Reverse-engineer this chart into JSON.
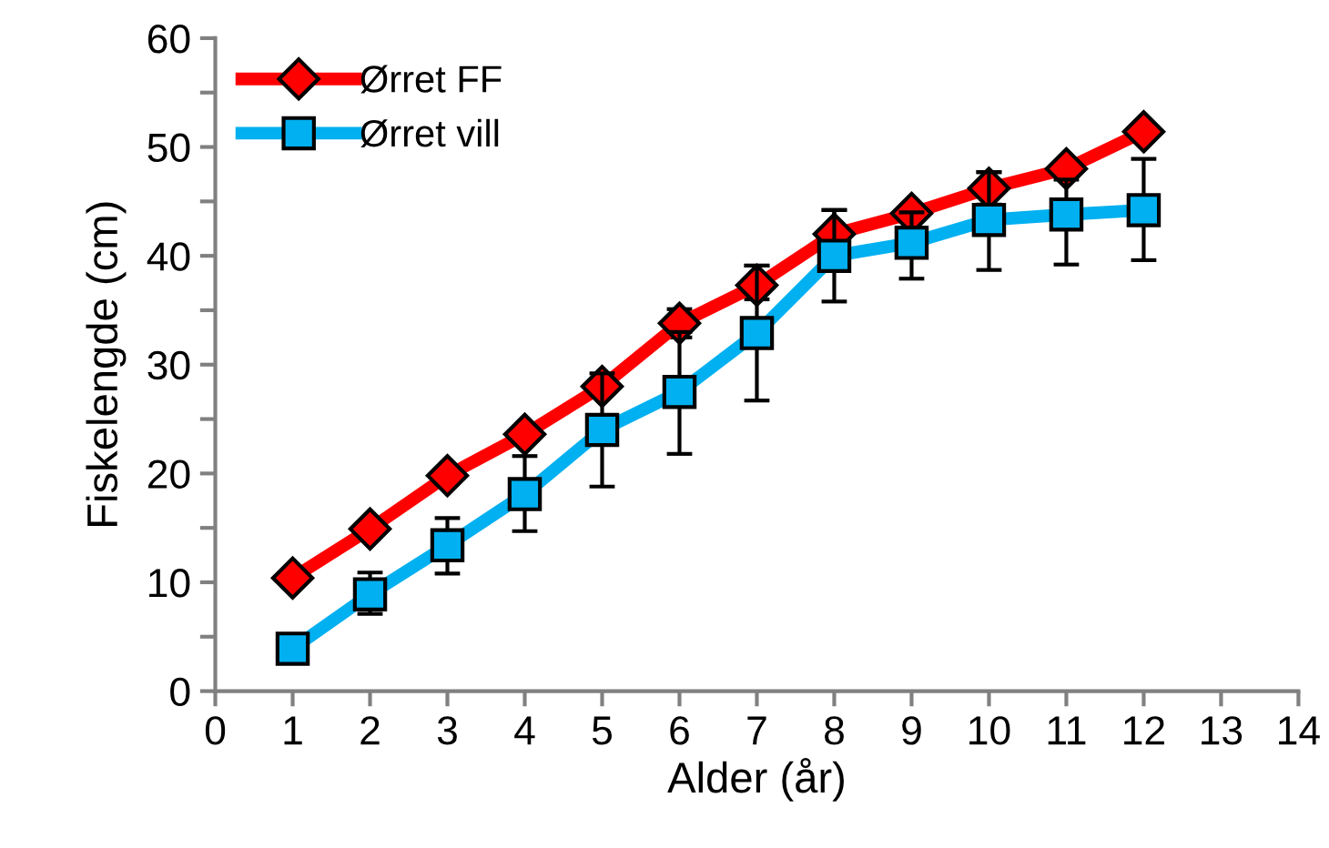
{
  "chart_data": {
    "type": "line",
    "xlabel": "Alder (år)",
    "ylabel": "Fiskelengde (cm)",
    "x": [
      1,
      2,
      3,
      4,
      5,
      6,
      7,
      8,
      9,
      10,
      11,
      12
    ],
    "series": [
      {
        "name": "Ørret FF",
        "color": "#ff0000",
        "marker": "diamond",
        "values": [
          10.4,
          14.9,
          19.8,
          23.6,
          28.0,
          33.8,
          37.3,
          42.0,
          43.9,
          46.2,
          48.0,
          51.4
        ],
        "errors": [
          null,
          null,
          null,
          null,
          null,
          1.3,
          [
            36.0,
            39.1
          ],
          2.2,
          null,
          1.5,
          null,
          null
        ]
      },
      {
        "name": "Ørret vill",
        "color": "#00b0f0",
        "marker": "square",
        "values": [
          3.9,
          8.9,
          13.4,
          18.1,
          24.0,
          27.5,
          32.9,
          40.0,
          41.2,
          43.3,
          43.8,
          44.2
        ],
        "errors": [
          null,
          [
            7.1,
            10.9
          ],
          [
            10.8,
            15.9
          ],
          [
            14.7,
            21.6
          ],
          [
            18.8,
            29.2
          ],
          [
            21.8,
            33.0
          ],
          [
            26.7,
            39.1
          ],
          [
            35.8,
            44.2
          ],
          [
            37.9,
            44.0
          ],
          [
            38.7,
            47.7
          ],
          [
            39.2,
            47.0
          ],
          [
            39.6,
            48.9
          ]
        ]
      }
    ],
    "xlim": [
      0,
      14
    ],
    "xticks": [
      0,
      1,
      2,
      3,
      4,
      5,
      6,
      7,
      8,
      9,
      10,
      11,
      12,
      13,
      14
    ],
    "ylim": [
      0,
      60
    ],
    "yticks": [
      0,
      {
        "value": 5,
        "label": null
      },
      10,
      {
        "value": 15,
        "label": null
      },
      20,
      {
        "value": 25,
        "label": null
      },
      30,
      {
        "value": 35,
        "label": null
      },
      40,
      {
        "value": 45,
        "label": null
      },
      50,
      {
        "value": 55,
        "label": null
      },
      60
    ],
    "grid": false,
    "legend": "top left",
    "line_style": "solid"
  }
}
